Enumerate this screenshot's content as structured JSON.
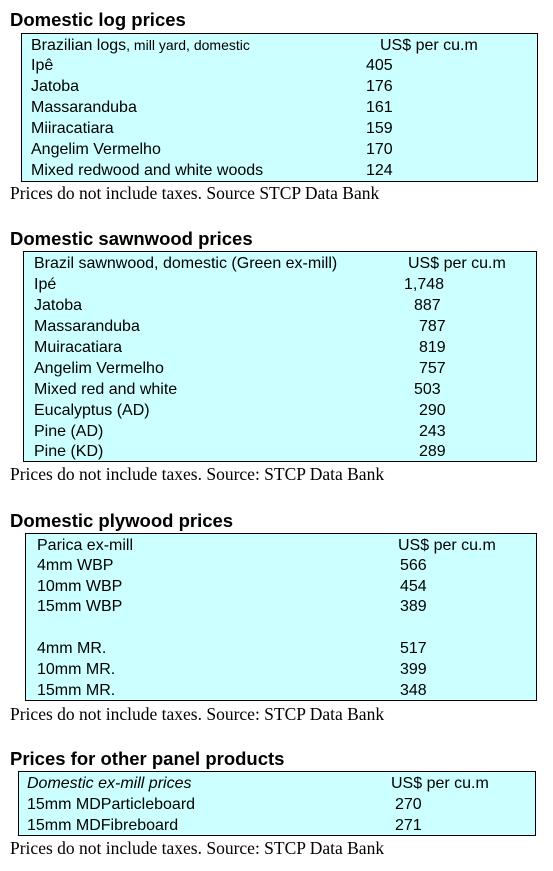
{
  "log": {
    "title": "Domestic log prices",
    "header": {
      "label_main": "Brazilian logs",
      "label_small": ", mill yard, domestic",
      "unit": "US$ per cu.m"
    },
    "rows": [
      {
        "name": "Ipê",
        "value": "405"
      },
      {
        "name": "Jatoba",
        "value": "176"
      },
      {
        "name": "Massaranduba",
        "value": "161"
      },
      {
        "name": "Miiracatiara",
        "value": "159"
      },
      {
        "name": "Angelim Vermelho",
        "value": "170"
      },
      {
        "name": "Mixed redwood and white woods",
        "value": "124"
      }
    ],
    "note": "Prices do not include taxes. Source STCP Data Bank"
  },
  "sawn": {
    "title": "Domestic sawnwood prices",
    "header": {
      "label": "Brazil sawnwood, domestic (Green ex-mill)",
      "unit": "US$ per cu.m"
    },
    "rows": [
      {
        "name": "Ipé",
        "value": "1,748"
      },
      {
        "name": "Jatoba",
        "value": "887"
      },
      {
        "name": "Massaranduba",
        "value": "787"
      },
      {
        "name": "Muiracatiara",
        "value": "819"
      },
      {
        "name": "Angelim Vermelho",
        "value": "757"
      },
      {
        "name": "Mixed red and white",
        "value": "503"
      },
      {
        "name": "Eucalyptus (AD)",
        "value": "290"
      },
      {
        "name": "Pine (AD)",
        "value": "243"
      },
      {
        "name": "Pine (KD)",
        "value": "289"
      }
    ],
    "note": "Prices do not include taxes. Source: STCP Data Bank"
  },
  "ply": {
    "title": "Domestic plywood prices",
    "header": {
      "label": "Parica ex-mill",
      "unit": "US$ per cu.m"
    },
    "rows": [
      {
        "name": "4mm WBP",
        "value": "566"
      },
      {
        "name": "10mm WBP",
        "value": "454"
      },
      {
        "name": "15mm WBP",
        "value": "389"
      },
      {
        "name": "4mm MR.",
        "value": "517"
      },
      {
        "name": "10mm MR.",
        "value": "399"
      },
      {
        "name": "15mm MR.",
        "value": "348"
      }
    ],
    "note": "Prices do not include taxes. Source: STCP Data Bank"
  },
  "panel": {
    "title": "Prices for other panel products",
    "header": {
      "label": "Domestic ex-mill prices",
      "unit": "US$ per cu.m"
    },
    "rows": [
      {
        "name": "15mm MDParticleboard",
        "value": "270"
      },
      {
        "name": "15mm MDFibreboard",
        "value": "271"
      }
    ],
    "note": "Prices do not include taxes. Source: STCP Data Bank"
  }
}
